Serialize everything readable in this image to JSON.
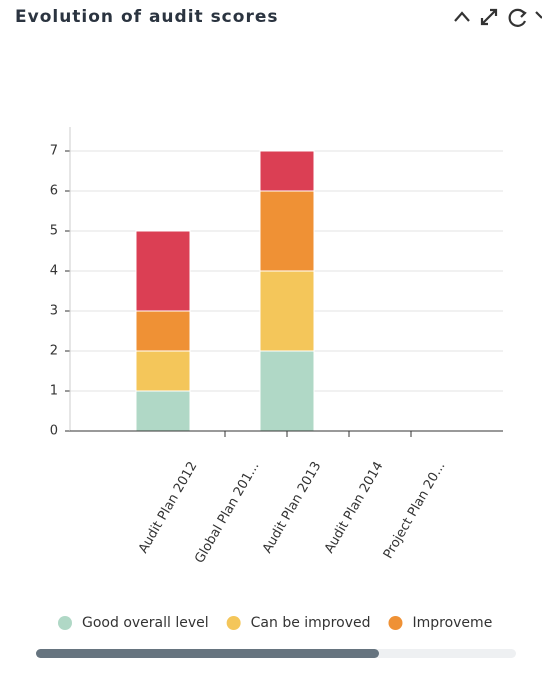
{
  "chart_data": {
    "type": "stacked-bar",
    "title": "Evolution of audit scores",
    "categories": [
      "Audit Plan 2012",
      "Global Plan 201...",
      "Audit Plan 2013",
      "Audit Plan 2014",
      "Project Plan 20..."
    ],
    "series": [
      {
        "name": "Good overall level",
        "color": "#b0d8c6",
        "values": [
          1,
          null,
          2,
          null,
          null
        ]
      },
      {
        "name": "Can be improved",
        "color": "#f4c65a",
        "values": [
          1,
          null,
          2,
          null,
          null
        ]
      },
      {
        "name": "Improveme",
        "color": "#ef9135",
        "values": [
          1,
          null,
          2,
          null,
          null
        ]
      },
      {
        "color": "#db3f54",
        "values": [
          2,
          null,
          1,
          null,
          null
        ]
      }
    ],
    "ylim": [
      0,
      7.6
    ],
    "yticks": [
      0,
      1,
      2,
      3,
      4,
      5,
      6,
      7
    ],
    "grid": true
  }
}
